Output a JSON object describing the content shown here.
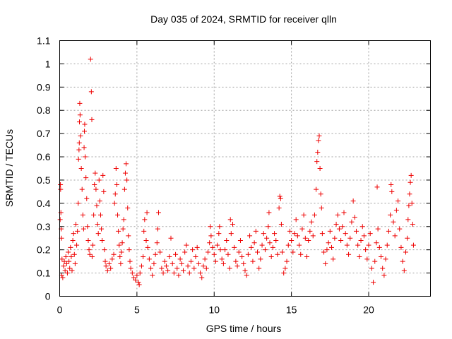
{
  "chart_data": {
    "type": "scatter",
    "title": "Day 035 of 2024, SRMTID for receiver qlln",
    "xlabel": "GPS time / hours",
    "ylabel": "SRMTID / TECUs",
    "xlim": [
      0,
      24
    ],
    "ylim": [
      0,
      1.1
    ],
    "x_ticks": [
      0,
      5,
      10,
      15,
      20
    ],
    "x_tick_labels": [
      "0",
      "5",
      "10",
      "15",
      "20"
    ],
    "y_ticks": [
      0,
      0.1,
      0.2,
      0.3,
      0.4,
      0.5,
      0.6,
      0.7,
      0.8,
      0.9,
      1,
      1.1
    ],
    "y_tick_labels": [
      "0",
      "0.1",
      "0.2",
      "0.3",
      "0.4",
      "0.5",
      "0.6",
      "0.7",
      "0.8",
      "0.9",
      "1",
      "1.1"
    ],
    "grid": true,
    "marker": "plus",
    "color": "#ee0000",
    "series": [
      {
        "name": "qlln",
        "points": [
          [
            0.03,
            0.33
          ],
          [
            0.05,
            0.48
          ],
          [
            0.06,
            0.46
          ],
          [
            0.08,
            0.36
          ],
          [
            0.1,
            0.29
          ],
          [
            0.12,
            0.25
          ],
          [
            0.13,
            0.09
          ],
          [
            0.15,
            0.16
          ],
          [
            0.2,
            0.08
          ],
          [
            0.25,
            0.13
          ],
          [
            0.3,
            0.15
          ],
          [
            0.35,
            0.11
          ],
          [
            0.4,
            0.17
          ],
          [
            0.45,
            0.14
          ],
          [
            0.5,
            0.1
          ],
          [
            0.55,
            0.19
          ],
          [
            0.6,
            0.15
          ],
          [
            0.65,
            0.12
          ],
          [
            0.7,
            0.21
          ],
          [
            0.75,
            0.17
          ],
          [
            0.8,
            0.11
          ],
          [
            0.85,
            0.24
          ],
          [
            0.9,
            0.27
          ],
          [
            0.95,
            0.18
          ],
          [
            1.0,
            0.14
          ],
          [
            1.05,
            0.31
          ],
          [
            1.1,
            0.22
          ],
          [
            1.15,
            0.28
          ],
          [
            1.2,
            0.4
          ],
          [
            1.22,
            0.59
          ],
          [
            1.25,
            0.63
          ],
          [
            1.27,
            0.66
          ],
          [
            1.28,
            0.75
          ],
          [
            1.3,
            0.83
          ],
          [
            1.32,
            0.78
          ],
          [
            1.35,
            0.69
          ],
          [
            1.4,
            0.55
          ],
          [
            1.45,
            0.46
          ],
          [
            1.5,
            0.35
          ],
          [
            1.55,
            0.29
          ],
          [
            1.58,
            0.64
          ],
          [
            1.6,
            0.71
          ],
          [
            1.62,
            0.74
          ],
          [
            1.65,
            0.6
          ],
          [
            1.7,
            0.51
          ],
          [
            1.75,
            0.42
          ],
          [
            1.8,
            0.3
          ],
          [
            1.85,
            0.24
          ],
          [
            1.9,
            0.2
          ],
          [
            1.95,
            0.18
          ],
          [
            2.0,
            1.02
          ],
          [
            2.05,
            0.88
          ],
          [
            2.08,
            0.76
          ],
          [
            2.1,
            0.17
          ],
          [
            2.15,
            0.22
          ],
          [
            2.2,
            0.35
          ],
          [
            2.25,
            0.48
          ],
          [
            2.3,
            0.53
          ],
          [
            2.35,
            0.46
          ],
          [
            2.4,
            0.39
          ],
          [
            2.45,
            0.31
          ],
          [
            2.5,
            0.27
          ],
          [
            2.55,
            0.5
          ],
          [
            2.6,
            0.41
          ],
          [
            2.65,
            0.35
          ],
          [
            2.7,
            0.29
          ],
          [
            2.75,
            0.24
          ],
          [
            2.8,
            0.52
          ],
          [
            2.85,
            0.45
          ],
          [
            2.9,
            0.2
          ],
          [
            2.95,
            0.15
          ],
          [
            3.0,
            0.13
          ],
          [
            3.1,
            0.11
          ],
          [
            3.2,
            0.14
          ],
          [
            3.3,
            0.12
          ],
          [
            3.4,
            0.16
          ],
          [
            3.5,
            0.18
          ],
          [
            3.55,
            0.4
          ],
          [
            3.6,
            0.44
          ],
          [
            3.65,
            0.55
          ],
          [
            3.7,
            0.48
          ],
          [
            3.75,
            0.35
          ],
          [
            3.8,
            0.28
          ],
          [
            3.85,
            0.22
          ],
          [
            3.9,
            0.17
          ],
          [
            3.95,
            0.14
          ],
          [
            4.0,
            0.19
          ],
          [
            4.05,
            0.23
          ],
          [
            4.1,
            0.29
          ],
          [
            4.15,
            0.33
          ],
          [
            4.2,
            0.46
          ],
          [
            4.25,
            0.53
          ],
          [
            4.3,
            0.57
          ],
          [
            4.35,
            0.5
          ],
          [
            4.4,
            0.38
          ],
          [
            4.45,
            0.26
          ],
          [
            4.5,
            0.2
          ],
          [
            4.55,
            0.15
          ],
          [
            4.6,
            0.12
          ],
          [
            4.7,
            0.1
          ],
          [
            4.8,
            0.08
          ],
          [
            4.9,
            0.07
          ],
          [
            5.0,
            0.09
          ],
          [
            5.1,
            0.06
          ],
          [
            5.15,
            0.05
          ],
          [
            5.2,
            0.1
          ],
          [
            5.3,
            0.13
          ],
          [
            5.4,
            0.17
          ],
          [
            5.45,
            0.28
          ],
          [
            5.5,
            0.33
          ],
          [
            5.6,
            0.24
          ],
          [
            5.65,
            0.36
          ],
          [
            5.7,
            0.21
          ],
          [
            5.8,
            0.16
          ],
          [
            5.9,
            0.12
          ],
          [
            6.0,
            0.09
          ],
          [
            6.1,
            0.14
          ],
          [
            6.2,
            0.18
          ],
          [
            6.3,
            0.23
          ],
          [
            6.35,
            0.29
          ],
          [
            6.4,
            0.36
          ],
          [
            6.5,
            0.19
          ],
          [
            6.6,
            0.12
          ],
          [
            6.7,
            0.1
          ],
          [
            6.8,
            0.15
          ],
          [
            6.9,
            0.13
          ],
          [
            7.0,
            0.11
          ],
          [
            7.1,
            0.17
          ],
          [
            7.2,
            0.25
          ],
          [
            7.3,
            0.14
          ],
          [
            7.4,
            0.1
          ],
          [
            7.5,
            0.18
          ],
          [
            7.6,
            0.12
          ],
          [
            7.7,
            0.09
          ],
          [
            7.8,
            0.16
          ],
          [
            7.9,
            0.14
          ],
          [
            8.0,
            0.11
          ],
          [
            8.1,
            0.19
          ],
          [
            8.2,
            0.22
          ],
          [
            8.3,
            0.13
          ],
          [
            8.4,
            0.1
          ],
          [
            8.5,
            0.15
          ],
          [
            8.6,
            0.2
          ],
          [
            8.7,
            0.12
          ],
          [
            8.8,
            0.17
          ],
          [
            8.9,
            0.21
          ],
          [
            9.0,
            0.14
          ],
          [
            9.1,
            0.1
          ],
          [
            9.2,
            0.08
          ],
          [
            9.3,
            0.13
          ],
          [
            9.4,
            0.16
          ],
          [
            9.5,
            0.12
          ],
          [
            9.6,
            0.19
          ],
          [
            9.7,
            0.23
          ],
          [
            9.75,
            0.3
          ],
          [
            9.8,
            0.26
          ],
          [
            9.9,
            0.21
          ],
          [
            10.0,
            0.18
          ],
          [
            10.1,
            0.15
          ],
          [
            10.2,
            0.22
          ],
          [
            10.3,
            0.27
          ],
          [
            10.35,
            0.3
          ],
          [
            10.4,
            0.2
          ],
          [
            10.5,
            0.16
          ],
          [
            10.6,
            0.14
          ],
          [
            10.7,
            0.2
          ],
          [
            10.8,
            0.24
          ],
          [
            10.9,
            0.18
          ],
          [
            11.0,
            0.12
          ],
          [
            11.05,
            0.33
          ],
          [
            11.1,
            0.27
          ],
          [
            11.2,
            0.31
          ],
          [
            11.3,
            0.21
          ],
          [
            11.4,
            0.15
          ],
          [
            11.5,
            0.13
          ],
          [
            11.6,
            0.19
          ],
          [
            11.7,
            0.24
          ],
          [
            11.8,
            0.17
          ],
          [
            11.9,
            0.14
          ],
          [
            12.0,
            0.11
          ],
          [
            12.1,
            0.09
          ],
          [
            12.2,
            0.18
          ],
          [
            12.3,
            0.26
          ],
          [
            12.4,
            0.21
          ],
          [
            12.5,
            0.15
          ],
          [
            12.6,
            0.23
          ],
          [
            12.7,
            0.28
          ],
          [
            12.8,
            0.19
          ],
          [
            12.9,
            0.12
          ],
          [
            13.0,
            0.16
          ],
          [
            13.1,
            0.22
          ],
          [
            13.2,
            0.27
          ],
          [
            13.3,
            0.2
          ],
          [
            13.4,
            0.25
          ],
          [
            13.5,
            0.3
          ],
          [
            13.55,
            0.36
          ],
          [
            13.6,
            0.23
          ],
          [
            13.7,
            0.17
          ],
          [
            13.8,
            0.21
          ],
          [
            13.9,
            0.27
          ],
          [
            14.0,
            0.24
          ],
          [
            14.1,
            0.18
          ],
          [
            14.2,
            0.38
          ],
          [
            14.25,
            0.43
          ],
          [
            14.3,
            0.42
          ],
          [
            14.35,
            0.31
          ],
          [
            14.4,
            0.19
          ],
          [
            14.5,
            0.1
          ],
          [
            14.6,
            0.12
          ],
          [
            14.7,
            0.15
          ],
          [
            14.8,
            0.22
          ],
          [
            14.9,
            0.28
          ],
          [
            15.0,
            0.24
          ],
          [
            15.1,
            0.19
          ],
          [
            15.2,
            0.27
          ],
          [
            15.3,
            0.33
          ],
          [
            15.4,
            0.26
          ],
          [
            15.5,
            0.22
          ],
          [
            15.6,
            0.18
          ],
          [
            15.7,
            0.29
          ],
          [
            15.8,
            0.35
          ],
          [
            15.9,
            0.25
          ],
          [
            16.0,
            0.17
          ],
          [
            16.1,
            0.24
          ],
          [
            16.2,
            0.28
          ],
          [
            16.3,
            0.32
          ],
          [
            16.4,
            0.26
          ],
          [
            16.5,
            0.35
          ],
          [
            16.6,
            0.46
          ],
          [
            16.65,
            0.58
          ],
          [
            16.7,
            0.62
          ],
          [
            16.75,
            0.67
          ],
          [
            16.8,
            0.69
          ],
          [
            16.85,
            0.55
          ],
          [
            16.9,
            0.44
          ],
          [
            16.95,
            0.38
          ],
          [
            17.0,
            0.27
          ],
          [
            17.1,
            0.19
          ],
          [
            17.2,
            0.14
          ],
          [
            17.3,
            0.2
          ],
          [
            17.4,
            0.23
          ],
          [
            17.5,
            0.28
          ],
          [
            17.6,
            0.21
          ],
          [
            17.7,
            0.16
          ],
          [
            17.8,
            0.25
          ],
          [
            17.9,
            0.31
          ],
          [
            18.0,
            0.35
          ],
          [
            18.1,
            0.29
          ],
          [
            18.2,
            0.24
          ],
          [
            18.3,
            0.3
          ],
          [
            18.4,
            0.36
          ],
          [
            18.5,
            0.27
          ],
          [
            18.6,
            0.22
          ],
          [
            18.7,
            0.18
          ],
          [
            18.8,
            0.25
          ],
          [
            18.9,
            0.32
          ],
          [
            19.0,
            0.41
          ],
          [
            19.1,
            0.34
          ],
          [
            19.2,
            0.28
          ],
          [
            19.3,
            0.22
          ],
          [
            19.4,
            0.17
          ],
          [
            19.5,
            0.24
          ],
          [
            19.6,
            0.3
          ],
          [
            19.7,
            0.26
          ],
          [
            19.8,
            0.2
          ],
          [
            19.9,
            0.16
          ],
          [
            20.0,
            0.22
          ],
          [
            20.1,
            0.27
          ],
          [
            20.2,
            0.12
          ],
          [
            20.3,
            0.06
          ],
          [
            20.4,
            0.15
          ],
          [
            20.5,
            0.23
          ],
          [
            20.55,
            0.47
          ],
          [
            20.6,
            0.29
          ],
          [
            20.7,
            0.21
          ],
          [
            20.8,
            0.17
          ],
          [
            20.9,
            0.12
          ],
          [
            21.0,
            0.09
          ],
          [
            21.1,
            0.16
          ],
          [
            21.2,
            0.22
          ],
          [
            21.3,
            0.28
          ],
          [
            21.4,
            0.35
          ],
          [
            21.45,
            0.48
          ],
          [
            21.5,
            0.45
          ],
          [
            21.6,
            0.32
          ],
          [
            21.7,
            0.26
          ],
          [
            21.8,
            0.37
          ],
          [
            21.9,
            0.41
          ],
          [
            22.0,
            0.29
          ],
          [
            22.1,
            0.21
          ],
          [
            22.2,
            0.15
          ],
          [
            22.3,
            0.11
          ],
          [
            22.4,
            0.19
          ],
          [
            22.5,
            0.25
          ],
          [
            22.55,
            0.33
          ],
          [
            22.6,
            0.39
          ],
          [
            22.65,
            0.44
          ],
          [
            22.7,
            0.49
          ],
          [
            22.75,
            0.52
          ],
          [
            22.8,
            0.4
          ],
          [
            22.85,
            0.31
          ],
          [
            22.9,
            0.22
          ]
        ]
      }
    ]
  }
}
